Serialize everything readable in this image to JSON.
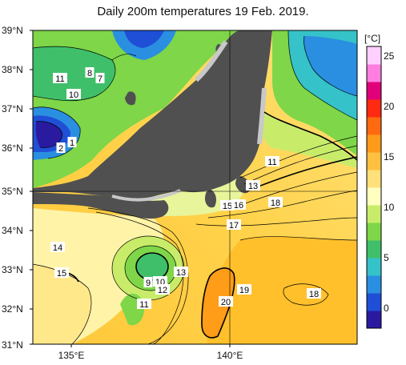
{
  "title": "Daily 200m temperatures 19 Feb. 2019.",
  "lat_labels": [
    "39°N",
    "38°N",
    "37°N",
    "36°N",
    "35°N",
    "34°N",
    "33°N",
    "32°N",
    "31°N"
  ],
  "lon_labels": [
    "135°E",
    "140°E"
  ],
  "colorbar": {
    "unit": "[°C]",
    "ticks": [
      "25",
      "20",
      "15",
      "10",
      "5",
      "0"
    ],
    "colors": [
      "#2a1aa0",
      "#1f4fd6",
      "#2a8fe0",
      "#35c2c8",
      "#3fbf6a",
      "#7ed648",
      "#c8ec6a",
      "#ffffc0",
      "#ffe07a",
      "#ffc040",
      "#ff9a1a",
      "#ff6a10",
      "#ff2a10",
      "#e0007a",
      "#ff7ee0",
      "#ffd0ff"
    ]
  },
  "contour_labels": [
    {
      "text": "11"
    },
    {
      "text": "8"
    },
    {
      "text": "7"
    },
    {
      "text": "10"
    },
    {
      "text": "1"
    },
    {
      "text": "2"
    },
    {
      "text": "11"
    },
    {
      "text": "13"
    },
    {
      "text": "15"
    },
    {
      "text": "16"
    },
    {
      "text": "18"
    },
    {
      "text": "17"
    },
    {
      "text": "14"
    },
    {
      "text": "15"
    },
    {
      "text": "13"
    },
    {
      "text": "9"
    },
    {
      "text": "10"
    },
    {
      "text": "12"
    },
    {
      "text": "11"
    },
    {
      "text": "19"
    },
    {
      "text": "20"
    },
    {
      "text": "18"
    }
  ],
  "colors": {
    "land": "#505050",
    "coast_shadow": "#c8c8c8",
    "grid": "#000000"
  }
}
